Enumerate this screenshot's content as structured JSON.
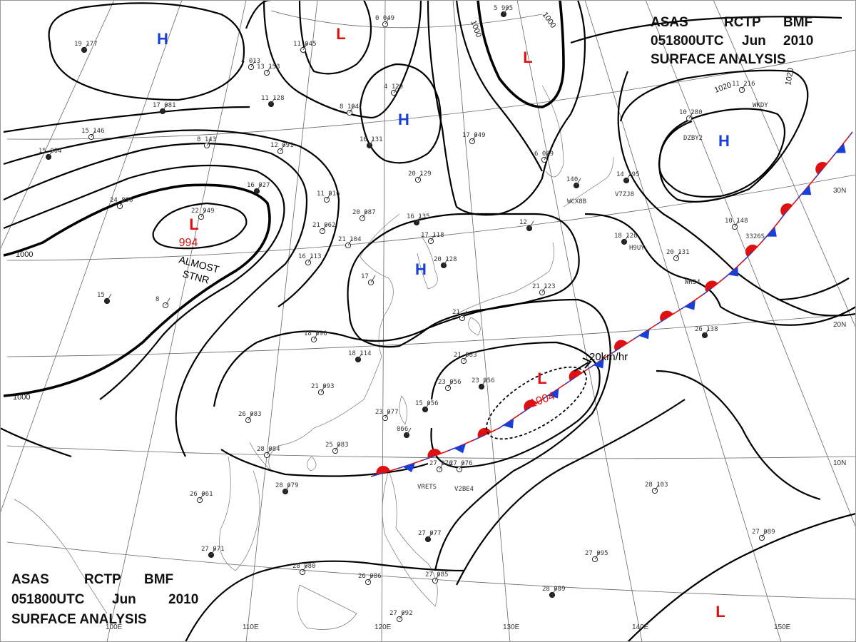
{
  "header": {
    "title_top_right": [
      "ASAS",
      "RCTP",
      "BMF",
      "051800UTC",
      "Jun",
      "2010",
      "SURFACE ANALYSIS"
    ],
    "title_bottom_left": [
      "ASAS",
      "RCTP",
      "BMF",
      "051800UTC",
      "Jun",
      "2010",
      "SURFACE ANALYSIS"
    ]
  },
  "pressure_centers": [
    {
      "kind": "H",
      "color": "#1a3fd6"
    },
    {
      "kind": "L",
      "color": "#e01010"
    },
    {
      "kind": "L",
      "color": "#e01010"
    },
    {
      "kind": "H",
      "color": "#1a3fd6"
    },
    {
      "kind": "L",
      "color": "#e01010"
    },
    {
      "kind": "H",
      "color": "#1a3fd6"
    },
    {
      "kind": "H",
      "color": "#1a3fd6"
    },
    {
      "kind": "L",
      "color": "#e01010"
    },
    {
      "kind": "L",
      "color": "#e01010"
    }
  ],
  "center_values": {
    "low_west": "994",
    "low_east": "1004"
  },
  "annotations": {
    "stationary_note_1": "ALMOST",
    "stationary_note_2": "STNR",
    "motion": "20km/hr"
  },
  "isobar_labels": [
    "1000",
    "1000",
    "1000",
    "1000",
    "1020",
    "1020"
  ],
  "longitude_labels": [
    "100E",
    "110E",
    "120E",
    "130E",
    "140E",
    "150E"
  ],
  "latitude_labels": [
    "30N",
    "20N",
    "10N"
  ],
  "front": {
    "warm_color": "#e01010",
    "cold_color": "#1a3fd6",
    "type": "stationary"
  },
  "stations": [
    "19 177",
    "11 045",
    "0 049",
    "5 995",
    "4 013",
    "13 153",
    "11 128",
    "8 104",
    "4 129",
    "17 081",
    "15 146",
    "12 091",
    "10 131",
    "17 049",
    "6 089",
    "15 004",
    "8 143",
    "24 890",
    "16 027",
    "11 016",
    "20 087",
    "16 135",
    "20 129",
    "22 949",
    "14 195",
    "10 280",
    "11 216",
    "140",
    "21 104",
    "17 118",
    "20 128",
    "21 062",
    "16 113",
    "18 126",
    "20 131",
    "10 148",
    "15",
    "8",
    "17",
    "12",
    "18 096",
    "21 123",
    "18 114",
    "21 083",
    "23 056",
    "23 056",
    "21",
    "21 093",
    "15 056",
    "26 083",
    "23 077",
    "066",
    "28 084",
    "25 083",
    "26 138",
    "27 076",
    "27 076",
    "28 079",
    "26 061",
    "28 103",
    "27 071",
    "28 080",
    "26 086",
    "27 077",
    "27 085",
    "27 095",
    "28 089",
    "27 089",
    "27 092"
  ],
  "station_codes": [
    "WKDY",
    "DZBY2",
    "WCX8B",
    "V7ZJ8",
    "H9UY",
    "3326S",
    "VRETS",
    "V2BE4",
    "WH34"
  ]
}
